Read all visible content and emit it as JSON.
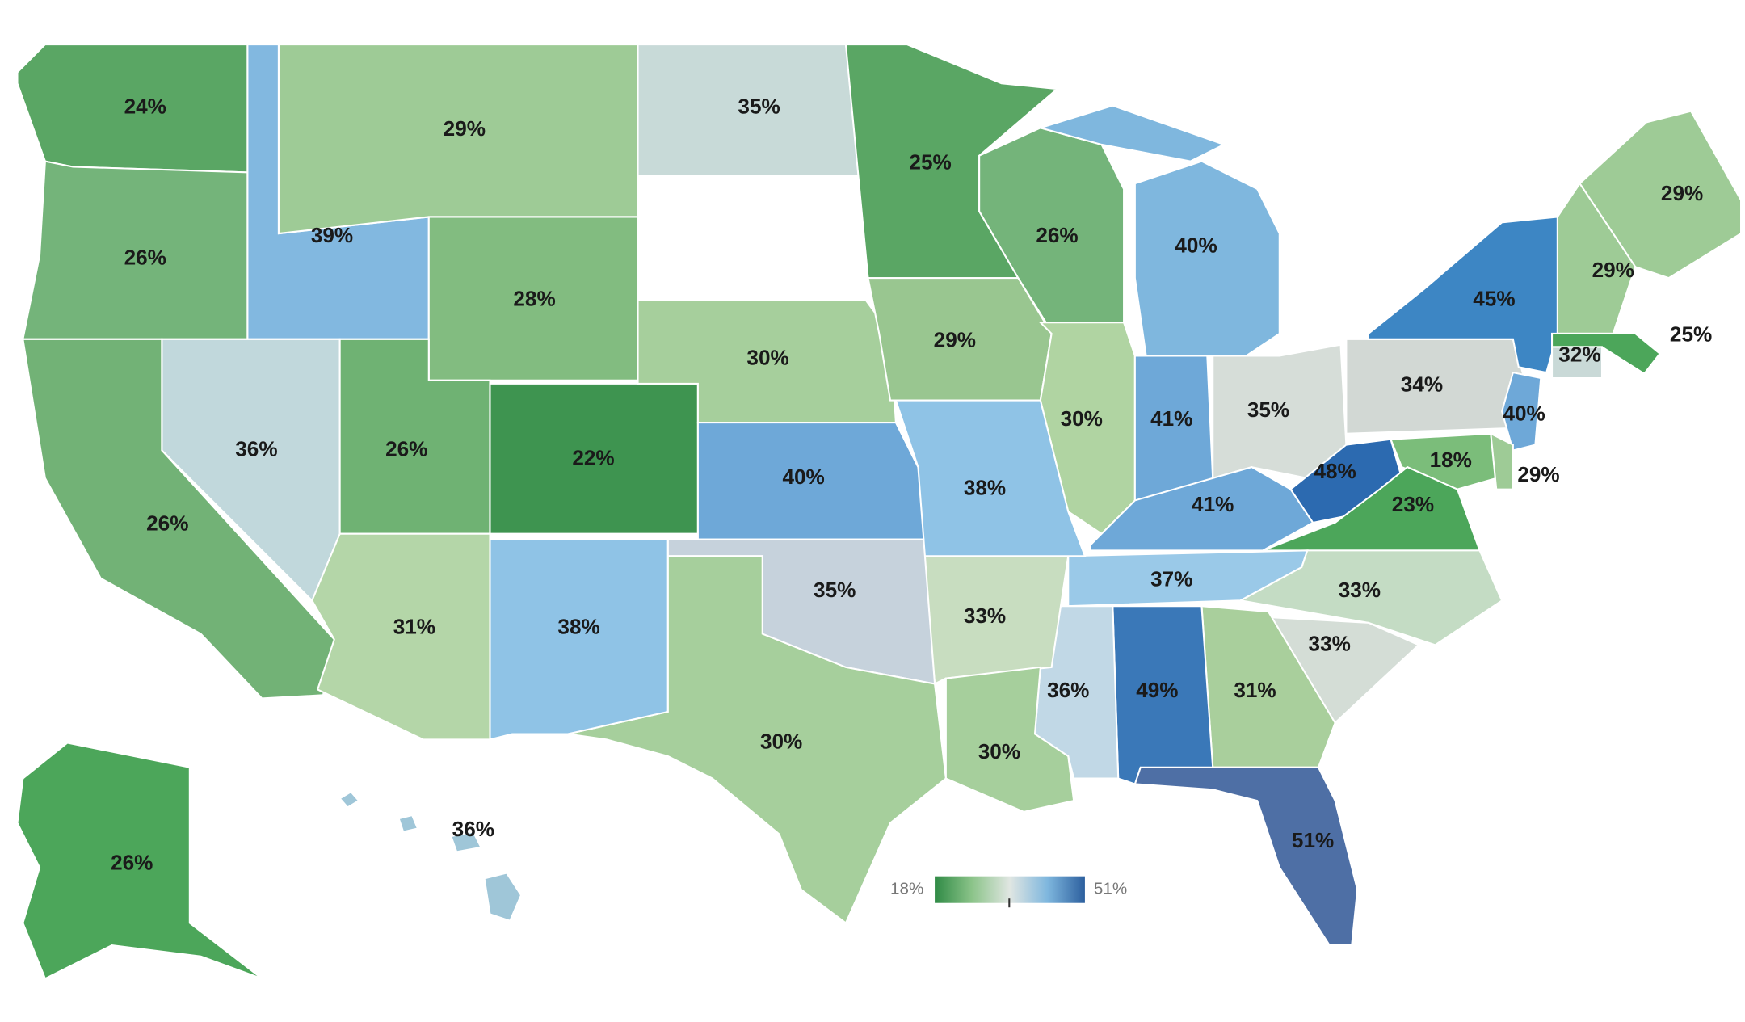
{
  "regions": [
    {
      "label": "24%",
      "color": "#5aa664"
    },
    {
      "label": "26%",
      "color": "#74b47a"
    },
    {
      "label": "26%",
      "color": "#72b276"
    },
    {
      "label": "39%",
      "color": "#82b8e0"
    },
    {
      "label": "29%",
      "color": "#9ecb96"
    },
    {
      "label": "35%",
      "color": "#c8dad8"
    },
    {
      "label": "25%",
      "color": "#5aa664"
    },
    {
      "label": "26%",
      "color": "#74b47a"
    },
    {
      "label": "40%",
      "color": "#7fb7de"
    },
    {
      "label": "28%",
      "color": "#82bc80"
    },
    {
      "label": "36%",
      "color": "#c1d8dc"
    },
    {
      "label": "26%",
      "color": "#6fb273"
    },
    {
      "label": "22%",
      "color": "#3e9450"
    },
    {
      "label": "30%",
      "color": "#a6cf9c"
    },
    {
      "label": "29%",
      "color": "#99c690"
    },
    {
      "label": "30%",
      "color": "#b0d4a2"
    },
    {
      "label": "41%",
      "color": "#6ea8d8"
    },
    {
      "label": "35%",
      "color": "#d6ddd8"
    },
    {
      "label": "34%",
      "color": "#d2d8d4"
    },
    {
      "label": "45%",
      "color": "#3d86c4"
    },
    {
      "label": "29%",
      "color": "#9ecb96"
    },
    {
      "label": "29%",
      "color": "#9ecb96"
    },
    {
      "label": "25%",
      "color": "#4ca65a"
    },
    {
      "label": "32%",
      "color": "#c9d9d7"
    },
    {
      "label": "40%",
      "color": "#6ea8d8"
    },
    {
      "label": "48%",
      "color": "#2c6ab0"
    },
    {
      "label": "18%",
      "color": "#7bbd7a"
    },
    {
      "label": "29%",
      "color": "#9ecb96"
    },
    {
      "label": "23%",
      "color": "#4ca65a"
    },
    {
      "label": "41%",
      "color": "#6ea8d8"
    },
    {
      "label": "37%",
      "color": "#9ac9e8"
    },
    {
      "label": "33%",
      "color": "#c4dcc4"
    },
    {
      "label": "33%",
      "color": "#d4ddd6"
    },
    {
      "label": "31%",
      "color": "#a9cf9c"
    },
    {
      "label": "51%",
      "color": "#4e6fa5"
    },
    {
      "label": "49%",
      "color": "#3a78b8"
    },
    {
      "label": "36%",
      "color": "#c1d8e6"
    },
    {
      "label": "33%",
      "color": "#c8ddc0"
    },
    {
      "label": "30%",
      "color": "#a6cf9c"
    },
    {
      "label": "38%",
      "color": "#8fc3e6"
    },
    {
      "label": "40%",
      "color": "#6ea8d8"
    },
    {
      "label": "35%",
      "color": "#c6d2dc"
    },
    {
      "label": "30%",
      "color": "#a6cf9c"
    },
    {
      "label": "38%",
      "color": "#8fc3e6"
    },
    {
      "label": "31%",
      "color": "#b4d6a8"
    },
    {
      "label": "26%",
      "color": "#4ca65a"
    },
    {
      "label": "36%",
      "color": "#9fc6d8"
    }
  ],
  "legend": {
    "min_label": "18%",
    "max_label": "51%",
    "colors": [
      "#2f8a45",
      "#8cc48a",
      "#e0e6e2",
      "#7fb7de",
      "#2c5f9e"
    ]
  }
}
